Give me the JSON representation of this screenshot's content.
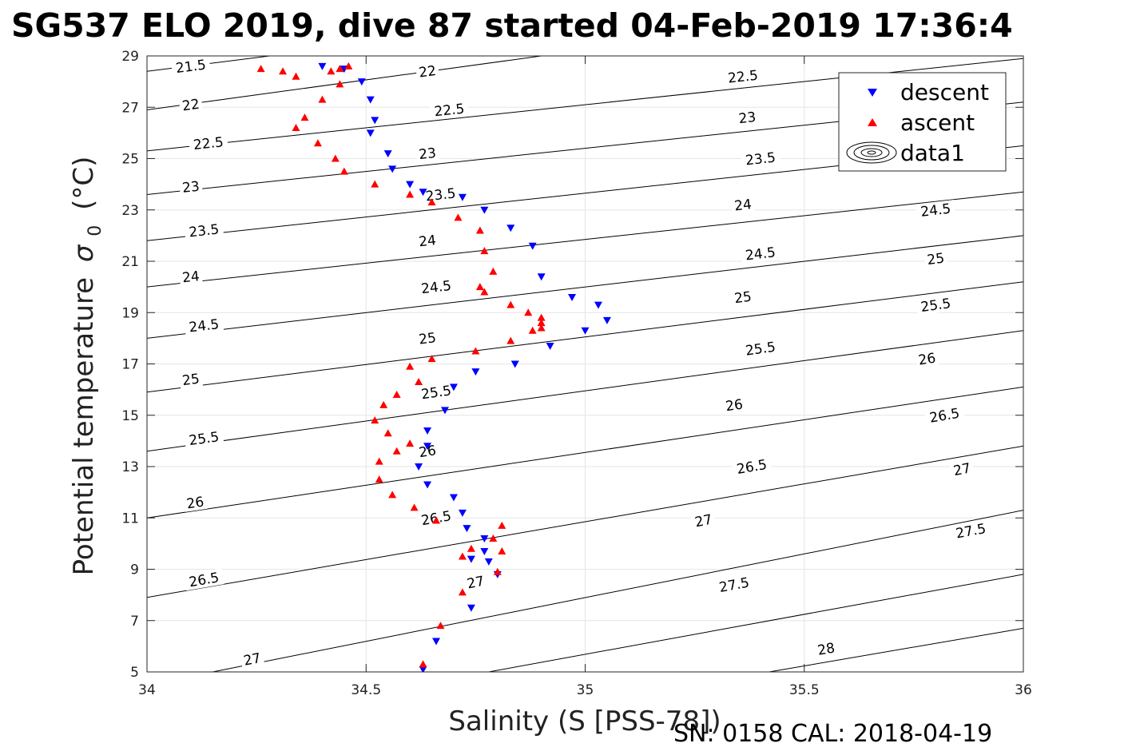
{
  "chart_data": {
    "type": "scatter",
    "title": "SG537 ELO 2019, dive 87 started 04-Feb-2019 17:36:4",
    "xlabel": "Salinity (S [PSS-78])",
    "ylabel": "Potential temperature",
    "ylabel_symbol": "σ",
    "ylabel_subscript": "0",
    "ylabel_unit": "(°C)",
    "footer": "SN: 0158  CAL: 2018-04-19",
    "xlim": [
      34,
      36
    ],
    "ylim": [
      5,
      29
    ],
    "xticks": [
      34,
      34.5,
      35,
      35.5,
      36
    ],
    "xtick_labels": [
      "34",
      "34.5",
      "35",
      "35.5",
      "36"
    ],
    "yticks": [
      5,
      7,
      9,
      11,
      13,
      15,
      17,
      19,
      21,
      23,
      25,
      27,
      29
    ],
    "ytick_labels": [
      "5",
      "7",
      "9",
      "11",
      "13",
      "15",
      "17",
      "19",
      "21",
      "23",
      "25",
      "27",
      "29"
    ],
    "grid": true,
    "legend_position": "top-right",
    "legend": [
      "descent",
      "ascent",
      "data1"
    ],
    "colors": {
      "descent": "#0000ff",
      "ascent": "#ff0000",
      "contours": "#000000"
    },
    "contours": {
      "name": "data1",
      "series": [
        {
          "level": "21.5",
          "points": [
            [
              34.0,
              28.4
            ],
            [
              34.28,
              29.0
            ]
          ],
          "labels": [
            {
              "text": "21.5",
              "x": 34.1,
              "y": 28.6
            }
          ]
        },
        {
          "level": "22",
          "points": [
            [
              34.0,
              26.9
            ],
            [
              34.9,
              29.0
            ]
          ],
          "labels": [
            {
              "text": "22",
              "x": 34.1,
              "y": 27.1
            },
            {
              "text": "22",
              "x": 34.64,
              "y": 28.4
            }
          ]
        },
        {
          "level": "22.5",
          "points": [
            [
              34.0,
              25.3
            ],
            [
              36.0,
              28.9
            ]
          ],
          "labels": [
            {
              "text": "22.5",
              "x": 34.14,
              "y": 25.6
            },
            {
              "text": "22.5",
              "x": 34.69,
              "y": 26.9
            },
            {
              "text": "22.5",
              "x": 35.36,
              "y": 28.2
            }
          ]
        },
        {
          "level": "23",
          "points": [
            [
              34.0,
              23.6
            ],
            [
              36.0,
              27.2
            ]
          ],
          "labels": [
            {
              "text": "23",
              "x": 34.1,
              "y": 23.9
            },
            {
              "text": "23",
              "x": 34.64,
              "y": 25.2
            },
            {
              "text": "23",
              "x": 35.37,
              "y": 26.6
            }
          ]
        },
        {
          "level": "23.5",
          "points": [
            [
              34.0,
              21.8
            ],
            [
              36.0,
              25.5
            ]
          ],
          "labels": [
            {
              "text": "23.5",
              "x": 34.13,
              "y": 22.2
            },
            {
              "text": "23.5",
              "x": 34.67,
              "y": 23.6
            },
            {
              "text": "23.5",
              "x": 35.4,
              "y": 25.0
            }
          ]
        },
        {
          "level": "24",
          "points": [
            [
              34.0,
              20.0
            ],
            [
              36.0,
              23.7
            ]
          ],
          "labels": [
            {
              "text": "24",
              "x": 34.1,
              "y": 20.4
            },
            {
              "text": "24",
              "x": 34.64,
              "y": 21.8
            },
            {
              "text": "24",
              "x": 35.36,
              "y": 23.2
            }
          ]
        },
        {
          "level": "24.5",
          "points": [
            [
              34.0,
              18.0
            ],
            [
              36.0,
              22.0
            ]
          ],
          "labels": [
            {
              "text": "24.5",
              "x": 34.13,
              "y": 18.5
            },
            {
              "text": "24.5",
              "x": 34.66,
              "y": 20.0
            },
            {
              "text": "24.5",
              "x": 35.4,
              "y": 21.3
            },
            {
              "text": "24.5",
              "x": 35.8,
              "y": 23.0
            }
          ]
        },
        {
          "level": "25",
          "points": [
            [
              34.0,
              15.9
            ],
            [
              36.0,
              20.2
            ]
          ],
          "labels": [
            {
              "text": "25",
              "x": 34.1,
              "y": 16.4
            },
            {
              "text": "25",
              "x": 34.64,
              "y": 18.0
            },
            {
              "text": "25",
              "x": 35.36,
              "y": 19.6
            },
            {
              "text": "25",
              "x": 35.8,
              "y": 21.1
            }
          ]
        },
        {
          "level": "25.5",
          "points": [
            [
              34.0,
              13.6
            ],
            [
              36.0,
              18.3
            ]
          ],
          "labels": [
            {
              "text": "25.5",
              "x": 34.13,
              "y": 14.1
            },
            {
              "text": "25.5",
              "x": 34.66,
              "y": 15.9
            },
            {
              "text": "25.5",
              "x": 35.4,
              "y": 17.6
            },
            {
              "text": "25.5",
              "x": 35.8,
              "y": 19.3
            }
          ]
        },
        {
          "level": "26",
          "points": [
            [
              34.0,
              11.0
            ],
            [
              36.0,
              16.1
            ]
          ],
          "labels": [
            {
              "text": "26",
              "x": 34.11,
              "y": 11.6
            },
            {
              "text": "26",
              "x": 34.64,
              "y": 13.6
            },
            {
              "text": "26",
              "x": 35.34,
              "y": 15.4
            },
            {
              "text": "26",
              "x": 35.78,
              "y": 17.2
            }
          ]
        },
        {
          "level": "26.5",
          "points": [
            [
              34.0,
              7.9
            ],
            [
              36.0,
              13.8
            ]
          ],
          "labels": [
            {
              "text": "26.5",
              "x": 34.13,
              "y": 8.6
            },
            {
              "text": "26.5",
              "x": 34.66,
              "y": 11.0
            },
            {
              "text": "26.5",
              "x": 35.38,
              "y": 13.0
            },
            {
              "text": "26.5",
              "x": 35.82,
              "y": 15.0
            }
          ]
        },
        {
          "level": "27",
          "points": [
            [
              34.15,
              5.0
            ],
            [
              36.0,
              11.3
            ]
          ],
          "labels": [
            {
              "text": "27",
              "x": 34.24,
              "y": 5.5
            },
            {
              "text": "27",
              "x": 34.75,
              "y": 8.5
            },
            {
              "text": "27",
              "x": 35.27,
              "y": 10.9
            },
            {
              "text": "27",
              "x": 35.86,
              "y": 12.9
            }
          ]
        },
        {
          "level": "27.5",
          "points": [
            [
              34.78,
              5.0
            ],
            [
              36.0,
              8.8
            ]
          ],
          "labels": [
            {
              "text": "27.5",
              "x": 35.34,
              "y": 8.4
            },
            {
              "text": "27.5",
              "x": 35.88,
              "y": 10.5
            }
          ]
        },
        {
          "level": "28",
          "points": [
            [
              35.42,
              5.0
            ],
            [
              36.0,
              6.7
            ]
          ],
          "labels": [
            {
              "text": "28",
              "x": 35.55,
              "y": 5.9
            }
          ]
        }
      ]
    },
    "series": [
      {
        "name": "descent",
        "marker": "triangle-down",
        "x": [
          34.4,
          34.45,
          34.49,
          34.51,
          34.52,
          34.51,
          34.55,
          34.56,
          34.6,
          34.63,
          34.72,
          34.77,
          34.83,
          34.88,
          34.9,
          34.97,
          35.03,
          35.05,
          35.0,
          34.92,
          34.84,
          34.75,
          34.7,
          34.68,
          34.64,
          34.64,
          34.62,
          34.64,
          34.7,
          34.72,
          34.73,
          34.77,
          34.77,
          34.74,
          34.78,
          34.8,
          34.74,
          34.66,
          34.63
        ],
        "y": [
          28.6,
          28.5,
          28.0,
          27.3,
          26.5,
          26.0,
          25.2,
          24.6,
          24.0,
          23.7,
          23.5,
          23.0,
          22.3,
          21.6,
          20.4,
          19.6,
          19.3,
          18.7,
          18.3,
          17.7,
          17.0,
          16.7,
          16.1,
          15.2,
          14.4,
          13.8,
          13.0,
          12.3,
          11.8,
          11.2,
          10.6,
          10.2,
          9.7,
          9.4,
          9.3,
          8.8,
          7.5,
          6.2,
          5.1
        ]
      },
      {
        "name": "ascent",
        "marker": "triangle-up",
        "x": [
          34.26,
          34.31,
          34.34,
          34.42,
          34.44,
          34.46,
          34.44,
          34.4,
          34.36,
          34.34,
          34.39,
          34.43,
          34.45,
          34.52,
          34.6,
          34.65,
          34.71,
          34.76,
          34.77,
          34.79,
          34.76,
          34.77,
          34.83,
          34.87,
          34.9,
          34.9,
          34.9,
          34.88,
          34.83,
          34.75,
          34.65,
          34.6,
          34.62,
          34.57,
          34.54,
          34.52,
          34.55,
          34.6,
          34.57,
          34.53,
          34.53,
          34.56,
          34.61,
          34.66,
          34.81,
          34.79,
          34.74,
          34.72,
          34.81,
          34.8,
          34.72,
          34.67,
          34.63
        ],
        "y": [
          28.5,
          28.4,
          28.2,
          28.4,
          28.5,
          28.6,
          27.9,
          27.3,
          26.6,
          26.2,
          25.6,
          25.0,
          24.5,
          24.0,
          23.6,
          23.3,
          22.7,
          22.2,
          21.4,
          20.6,
          20.0,
          19.8,
          19.3,
          19.0,
          18.8,
          18.6,
          18.4,
          18.3,
          17.9,
          17.5,
          17.2,
          16.9,
          16.3,
          15.8,
          15.4,
          14.8,
          14.3,
          13.9,
          13.6,
          13.2,
          12.5,
          11.9,
          11.4,
          10.9,
          10.7,
          10.2,
          9.8,
          9.5,
          9.7,
          8.9,
          8.1,
          6.8,
          5.3
        ]
      }
    ]
  }
}
